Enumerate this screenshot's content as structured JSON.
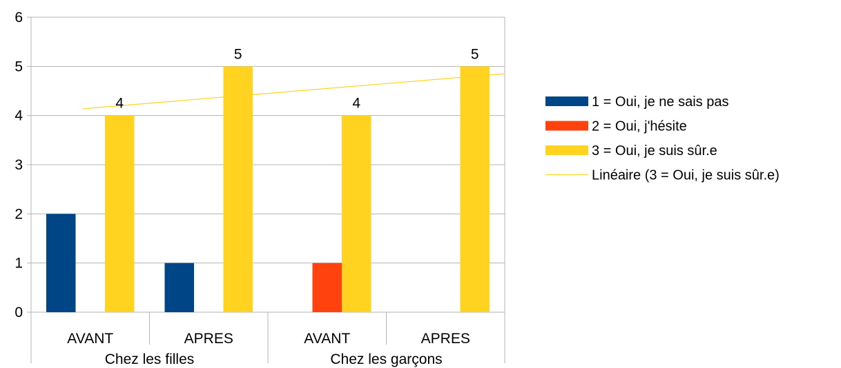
{
  "chart_data": {
    "type": "bar",
    "groups": [
      "Chez les filles",
      "Chez les garçons"
    ],
    "categories": [
      "AVANT",
      "APRES",
      "AVANT",
      "APRES"
    ],
    "category_groups": [
      0,
      0,
      1,
      1
    ],
    "ylim": [
      0,
      6
    ],
    "yticks": [
      "0",
      "1",
      "2",
      "3",
      "4",
      "5",
      "6"
    ],
    "series": [
      {
        "name": "1 = Oui, je ne sais pas",
        "values": [
          2,
          1,
          0,
          0
        ],
        "color": "#004586"
      },
      {
        "name": "2 = Oui, j'hésite",
        "values": [
          0,
          0,
          1,
          0
        ],
        "color": "#ff420e"
      },
      {
        "name": "3 = Oui, je suis sûr.e",
        "values": [
          4,
          5,
          4,
          5
        ],
        "color": "#ffd320",
        "data_labels": [
          "4",
          "5",
          "4",
          "5"
        ]
      }
    ],
    "trendline": {
      "name": "Linéaire (3 = Oui, je suis sûr.e)",
      "type": "linear",
      "series": "3 = Oui, je suis sûr.e",
      "color": "#ffd320"
    },
    "grid": true,
    "legend_position": "right"
  }
}
